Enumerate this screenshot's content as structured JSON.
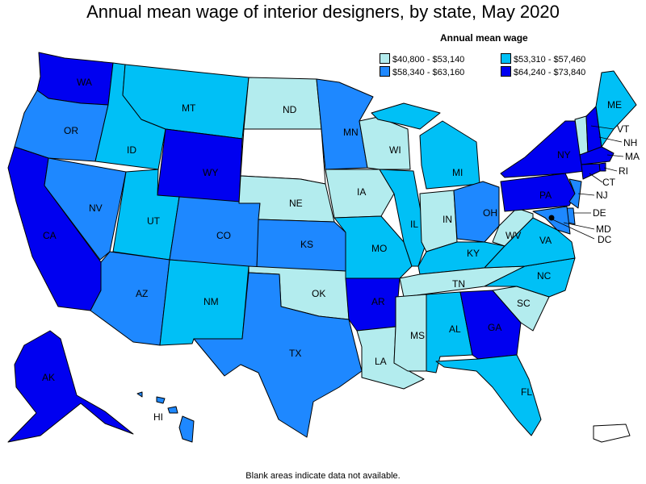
{
  "title": "Annual mean wage of interior designers, by state, May 2020",
  "legend": {
    "title": "Annual mean wage",
    "items": [
      {
        "label": "$40,800 - $53,140",
        "color": "#b3ecee"
      },
      {
        "label": "$53,310 - $57,460",
        "color": "#00c0f6"
      },
      {
        "label": "$58,340 - $63,160",
        "color": "#1e88ff"
      },
      {
        "label": "$64,240 - $73,840",
        "color": "#0000f0"
      }
    ]
  },
  "footnote": "Blank areas indicate data not available.",
  "states": {
    "WA": {
      "label": "WA",
      "tier": 3
    },
    "OR": {
      "label": "OR",
      "tier": 2
    },
    "CA": {
      "label": "CA",
      "tier": 3
    },
    "NV": {
      "label": "NV",
      "tier": 2
    },
    "ID": {
      "label": "ID",
      "tier": 1
    },
    "MT": {
      "label": "MT",
      "tier": 1
    },
    "WY": {
      "label": "WY",
      "tier": 3
    },
    "UT": {
      "label": "UT",
      "tier": 1
    },
    "AZ": {
      "label": "AZ",
      "tier": 2
    },
    "CO": {
      "label": "CO",
      "tier": 2
    },
    "NM": {
      "label": "NM",
      "tier": 1
    },
    "ND": {
      "label": "ND",
      "tier": 0
    },
    "SD": {
      "label": "",
      "tier": null
    },
    "NE": {
      "label": "NE",
      "tier": 0
    },
    "KS": {
      "label": "KS",
      "tier": 2
    },
    "OK": {
      "label": "OK",
      "tier": 0
    },
    "TX": {
      "label": "TX",
      "tier": 2
    },
    "MN": {
      "label": "MN",
      "tier": 2
    },
    "IA": {
      "label": "IA",
      "tier": 0
    },
    "MO": {
      "label": "MO",
      "tier": 1
    },
    "AR": {
      "label": "AR",
      "tier": 3
    },
    "LA": {
      "label": "LA",
      "tier": 0
    },
    "WI": {
      "label": "WI",
      "tier": 0
    },
    "IL": {
      "label": "IL",
      "tier": 1
    },
    "MI": {
      "label": "MI",
      "tier": 1
    },
    "IN": {
      "label": "IN",
      "tier": 0
    },
    "OH": {
      "label": "OH",
      "tier": 2
    },
    "KY": {
      "label": "KY",
      "tier": 1
    },
    "TN": {
      "label": "TN",
      "tier": 0
    },
    "MS": {
      "label": "MS",
      "tier": 0
    },
    "AL": {
      "label": "AL",
      "tier": 1
    },
    "GA": {
      "label": "GA",
      "tier": 3
    },
    "FL": {
      "label": "FL",
      "tier": 1
    },
    "SC": {
      "label": "SC",
      "tier": 0
    },
    "NC": {
      "label": "NC",
      "tier": 1
    },
    "VA": {
      "label": "VA",
      "tier": 1
    },
    "WV": {
      "label": "WV",
      "tier": 0
    },
    "PA": {
      "label": "PA",
      "tier": 3
    },
    "NY": {
      "label": "NY",
      "tier": 3
    },
    "VT": {
      "label": "VT",
      "tier": 0
    },
    "NH": {
      "label": "NH",
      "tier": 3
    },
    "ME": {
      "label": "ME",
      "tier": 1
    },
    "MA": {
      "label": "MA",
      "tier": 3
    },
    "RI": {
      "label": "RI",
      "tier": 3
    },
    "CT": {
      "label": "CT",
      "tier": 3
    },
    "NJ": {
      "label": "NJ",
      "tier": 2
    },
    "DE": {
      "label": "DE",
      "tier": 2
    },
    "MD": {
      "label": "MD",
      "tier": 2
    },
    "DC": {
      "label": "DC",
      "tier": 3
    },
    "AK": {
      "label": "AK",
      "tier": 3
    },
    "HI": {
      "label": "HI",
      "tier": 2
    },
    "PR": {
      "label": "",
      "tier": null
    }
  }
}
